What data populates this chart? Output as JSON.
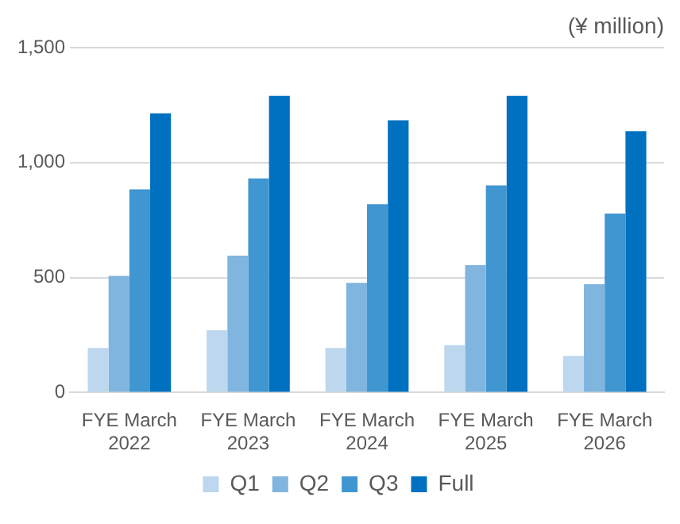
{
  "chart_data": {
    "type": "bar",
    "ylabel": "(¥ million)",
    "categories": [
      "FYE March 2022",
      "FYE March 2023",
      "FYE March 2024",
      "FYE March 2025",
      "FYE March 2026"
    ],
    "series": [
      {
        "name": "Q1",
        "color": "#bdd7ee",
        "values": [
          194,
          271,
          194,
          206,
          159
        ]
      },
      {
        "name": "Q2",
        "color": "#7fb5de",
        "values": [
          507,
          595,
          477,
          554,
          471
        ]
      },
      {
        "name": "Q3",
        "color": "#3f96d0",
        "values": [
          884,
          931,
          819,
          901,
          778
        ]
      },
      {
        "name": "Full",
        "color": "#0070c0",
        "values": [
          1214,
          1290,
          1184,
          1290,
          1137
        ]
      }
    ],
    "ylim": [
      0,
      1500
    ],
    "yticks": [
      0,
      500,
      {
        "value": 1000,
        "label": "1,000"
      },
      {
        "value": 1500,
        "label": "1,500"
      }
    ],
    "grid": "y",
    "legend": "bottom"
  }
}
